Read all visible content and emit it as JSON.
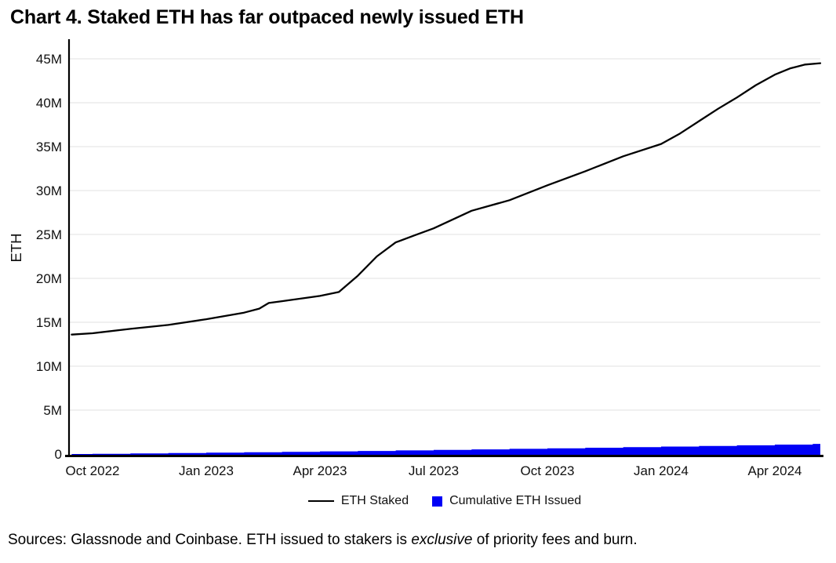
{
  "page": {
    "title": "Chart 4. Staked ETH has far outpaced newly issued ETH",
    "footer": {
      "prefix": "Sources: Glassnode and Coinbase. ETH issued to stakers is ",
      "italic_word": "exclusive",
      "suffix": " of priority fees and burn."
    }
  },
  "chart_data": {
    "type": "line",
    "title": "Chart 4. Staked ETH has far outpaced newly issued ETH",
    "xlabel": "",
    "ylabel": "ETH",
    "units": "millions of ETH",
    "grid": true,
    "legend_position": "bottom",
    "ylim": [
      0,
      46.5
    ],
    "xlim_months_since_oct2022": [
      -0.62,
      19.2
    ],
    "y_ticks": {
      "values": [
        0,
        5,
        10,
        15,
        20,
        25,
        30,
        35,
        40,
        45
      ],
      "labels": [
        "0",
        "5M",
        "10M",
        "15M",
        "20M",
        "25M",
        "30M",
        "35M",
        "40M",
        "45M"
      ]
    },
    "x_ticks": {
      "months_since_oct2022": [
        0,
        3,
        6,
        9,
        12,
        15,
        18
      ],
      "labels": [
        "Oct 2022",
        "Jan 2023",
        "Apr 2023",
        "Jul 2023",
        "Oct 2023",
        "Jan 2024",
        "Apr 2024"
      ]
    },
    "series": [
      {
        "name": "ETH Staked",
        "type": "line",
        "color": "#000000",
        "x_months_since_oct2022": [
          -0.55,
          0,
          1,
          2,
          3,
          4,
          4.4,
          4.65,
          5,
          6,
          6.5,
          7,
          7.5,
          8,
          8.5,
          9,
          10,
          11,
          12,
          13,
          14,
          15,
          15.5,
          16,
          16.5,
          17,
          17.5,
          18,
          18.4,
          18.8,
          19.2
        ],
        "values_m_eth": [
          13.6,
          13.75,
          14.25,
          14.7,
          15.35,
          16.1,
          16.55,
          17.2,
          17.4,
          18.0,
          18.45,
          20.3,
          22.5,
          24.1,
          24.9,
          25.7,
          27.7,
          28.9,
          30.6,
          32.2,
          33.9,
          35.3,
          36.5,
          37.9,
          39.3,
          40.6,
          42.0,
          43.2,
          43.9,
          44.35,
          44.5
        ]
      },
      {
        "name": "Cumulative ETH Issued",
        "type": "step_area",
        "color": "#0000f6",
        "x_months_since_oct2022": [
          -0.55,
          0,
          1,
          2,
          3,
          4,
          5,
          6,
          7,
          8,
          9,
          10,
          11,
          12,
          13,
          14,
          15,
          16,
          17,
          18,
          19
        ],
        "values_m_eth": [
          0,
          0.03,
          0.07,
          0.11,
          0.16,
          0.2,
          0.25,
          0.3,
          0.35,
          0.41,
          0.47,
          0.53,
          0.59,
          0.65,
          0.71,
          0.78,
          0.85,
          0.92,
          0.99,
          1.07,
          1.15
        ]
      }
    ]
  }
}
